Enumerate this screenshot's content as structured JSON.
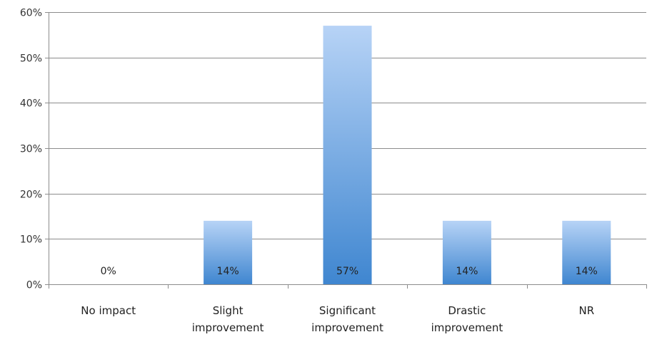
{
  "chart_data": {
    "type": "bar",
    "categories": [
      [
        "No impact"
      ],
      [
        "Slight",
        "improvement"
      ],
      [
        "Significant",
        "improvement"
      ],
      [
        "Drastic",
        "improvement"
      ],
      [
        "NR"
      ]
    ],
    "values": [
      0,
      14,
      57,
      14,
      14
    ],
    "data_labels": [
      "0%",
      "14%",
      "57%",
      "14%",
      "14%"
    ],
    "y_ticks": [
      0,
      10,
      20,
      30,
      40,
      50,
      60
    ],
    "y_tick_labels": [
      "0%",
      "10%",
      "20%",
      "30%",
      "40%",
      "50%",
      "60%"
    ],
    "ylim": [
      0,
      60
    ],
    "grid": true,
    "colors": {
      "bar_top": "#b7d3f6",
      "bar_bottom": "#3f86d0",
      "grid": "#8c8c8c",
      "axis": "#8c8c8c"
    }
  }
}
